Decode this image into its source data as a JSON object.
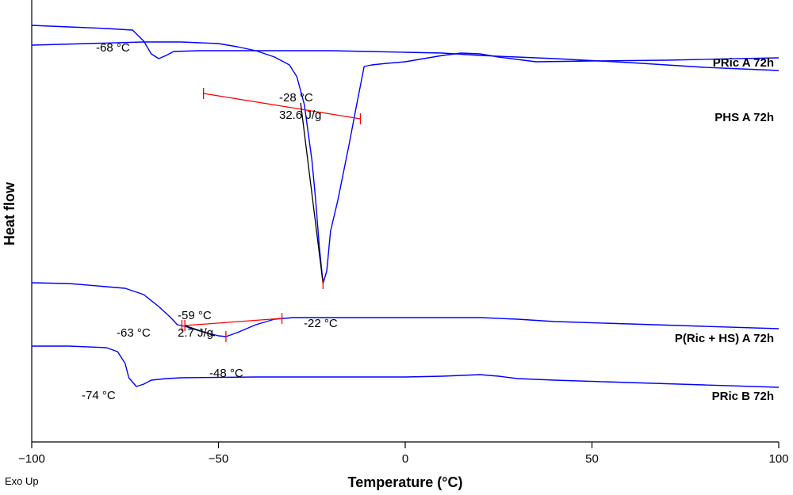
{
  "chart_data": {
    "type": "line",
    "xlabel": "Temperature (°C)",
    "ylabel": "Heat flow",
    "exo_label": "Exo Up",
    "xlim": [
      -100,
      100
    ],
    "x_ticks": [
      -100,
      -50,
      0,
      50,
      100
    ],
    "x_tick_labels": [
      "−100",
      "−50",
      "0",
      "50",
      "100"
    ],
    "grid": false,
    "series": [
      {
        "name": "PRic A 72h",
        "color": "#0000ff",
        "points": [
          [
            -100,
            20
          ],
          [
            -90,
            22
          ],
          [
            -80,
            24
          ],
          [
            -73,
            26
          ],
          [
            -70,
            40
          ],
          [
            -68,
            56
          ],
          [
            -66,
            62
          ],
          [
            -64,
            58
          ],
          [
            -62,
            53
          ],
          [
            -55,
            52
          ],
          [
            -30,
            52
          ],
          [
            -20,
            52
          ],
          [
            -10,
            53
          ],
          [
            0,
            54
          ],
          [
            10,
            55
          ],
          [
            20,
            58
          ],
          [
            30,
            60
          ],
          [
            40,
            62
          ],
          [
            60,
            67
          ],
          [
            80,
            73
          ],
          [
            90,
            75
          ],
          [
            100,
            77
          ]
        ]
      },
      {
        "name": "PHS A 72h",
        "color": "#0000ff",
        "points": [
          [
            -100,
            45
          ],
          [
            -85,
            43
          ],
          [
            -70,
            41
          ],
          [
            -60,
            41
          ],
          [
            -50,
            43
          ],
          [
            -45,
            47
          ],
          [
            -40,
            52
          ],
          [
            -35,
            60
          ],
          [
            -31,
            70
          ],
          [
            -29,
            85
          ],
          [
            -27,
            120
          ],
          [
            -25,
            190
          ],
          [
            -24,
            240
          ],
          [
            -23,
            300
          ],
          [
            -22,
            346
          ],
          [
            -21,
            330
          ],
          [
            -20,
            280
          ],
          [
            -18,
            240
          ],
          [
            -15,
            170
          ],
          [
            -13,
            120
          ],
          [
            -11,
            72
          ],
          [
            -9,
            70
          ],
          [
            -5,
            68
          ],
          [
            0,
            66
          ],
          [
            5,
            62
          ],
          [
            10,
            58
          ],
          [
            15,
            55
          ],
          [
            20,
            56
          ],
          [
            25,
            60
          ],
          [
            30,
            63
          ],
          [
            35,
            66
          ],
          [
            50,
            65
          ],
          [
            70,
            64
          ],
          [
            100,
            61
          ]
        ]
      },
      {
        "name": "P(Ric + HS) A 72h",
        "color": "#0000ff",
        "points": [
          [
            -100,
            345
          ],
          [
            -90,
            346
          ],
          [
            -80,
            350
          ],
          [
            -75,
            352
          ],
          [
            -70,
            360
          ],
          [
            -66,
            375
          ],
          [
            -63,
            388
          ],
          [
            -61,
            398
          ],
          [
            -59,
            400
          ],
          [
            -55,
            406
          ],
          [
            -50,
            412
          ],
          [
            -48,
            413
          ],
          [
            -45,
            408
          ],
          [
            -40,
            398
          ],
          [
            -35,
            391
          ],
          [
            -30,
            389
          ],
          [
            -20,
            389
          ],
          [
            -10,
            389
          ],
          [
            0,
            389
          ],
          [
            10,
            389
          ],
          [
            20,
            389
          ],
          [
            30,
            391
          ],
          [
            40,
            394
          ],
          [
            60,
            397
          ],
          [
            80,
            400
          ],
          [
            100,
            403
          ]
        ]
      },
      {
        "name": "PRic B 72h",
        "color": "#0000ff",
        "points": [
          [
            -100,
            425
          ],
          [
            -90,
            425
          ],
          [
            -80,
            427
          ],
          [
            -77,
            432
          ],
          [
            -75,
            447
          ],
          [
            -74,
            465
          ],
          [
            -72,
            476
          ],
          [
            -70,
            473
          ],
          [
            -68,
            468
          ],
          [
            -64,
            466
          ],
          [
            -60,
            465
          ],
          [
            -40,
            464
          ],
          [
            -20,
            464
          ],
          [
            0,
            464
          ],
          [
            10,
            463
          ],
          [
            20,
            461
          ],
          [
            25,
            463
          ],
          [
            30,
            466
          ],
          [
            40,
            468
          ],
          [
            60,
            471
          ],
          [
            80,
            474
          ],
          [
            100,
            477
          ]
        ]
      }
    ],
    "baselines": [
      {
        "from": [
          -54,
          106
        ],
        "to": [
          -12,
          138
        ],
        "color": "#ff0000"
      },
      {
        "from": [
          -59,
          399
        ],
        "to": [
          -33,
          390
        ],
        "color": "#ff0000"
      }
    ],
    "integration_lines": [
      {
        "from": [
          -28,
          118
        ],
        "to": [
          -22,
          346
        ],
        "color": "#000000"
      },
      {
        "from": [
          -59,
          399
        ],
        "to": [
          -51,
          412
        ],
        "color": "#000000"
      }
    ],
    "markers": [
      {
        "x": -54,
        "y": 106
      },
      {
        "x": -12,
        "y": 138
      },
      {
        "x": -22,
        "y": 346
      },
      {
        "x": -59.8,
        "y": 399
      },
      {
        "x": -59,
        "y": 399
      },
      {
        "x": -48,
        "y": 413
      },
      {
        "x": -33,
        "y": 390
      }
    ],
    "annotations": [
      {
        "text": "-68 °C"
      },
      {
        "text": "-28 °C"
      },
      {
        "text": "32.6 J/g"
      },
      {
        "text": "-22 °C"
      },
      {
        "text": "-59 °C"
      },
      {
        "text": "2.7 J/g"
      },
      {
        "text": "-63 °C"
      },
      {
        "text": "-48 °C"
      },
      {
        "text": "-74 °C"
      }
    ]
  }
}
